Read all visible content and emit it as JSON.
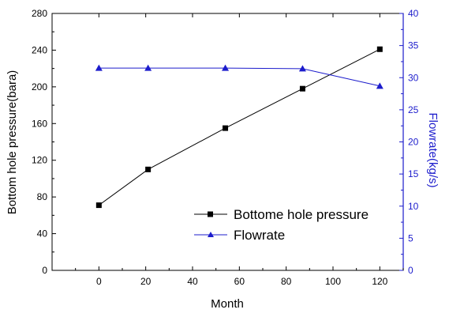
{
  "chart_data": {
    "type": "line",
    "xlabel": "Month",
    "ylabel": "Bottom hole pressure(bara)",
    "y2label": "Flowrate(kg/s)",
    "xlim": [
      -20,
      130
    ],
    "ylim": [
      0,
      280
    ],
    "y2lim": [
      0,
      40
    ],
    "x_ticks": [
      0,
      20,
      40,
      60,
      80,
      100,
      120
    ],
    "y_ticks": [
      0,
      40,
      80,
      120,
      160,
      200,
      240,
      280
    ],
    "y2_ticks": [
      0,
      5,
      10,
      15,
      20,
      25,
      30,
      35,
      40
    ],
    "legend_position": "bottom-right",
    "grid": false,
    "series": [
      {
        "name": "Bottome hole pressure",
        "axis": "left",
        "color": "#000000",
        "marker": "square",
        "x": [
          0,
          21,
          54,
          87,
          120
        ],
        "y": [
          71,
          110,
          155,
          198,
          241
        ]
      },
      {
        "name": "Flowrate",
        "axis": "right",
        "color": "#1c1ccc",
        "marker": "triangle",
        "x": [
          0,
          21,
          54,
          87,
          120
        ],
        "y": [
          31.5,
          31.5,
          31.5,
          31.4,
          28.7
        ]
      }
    ]
  }
}
